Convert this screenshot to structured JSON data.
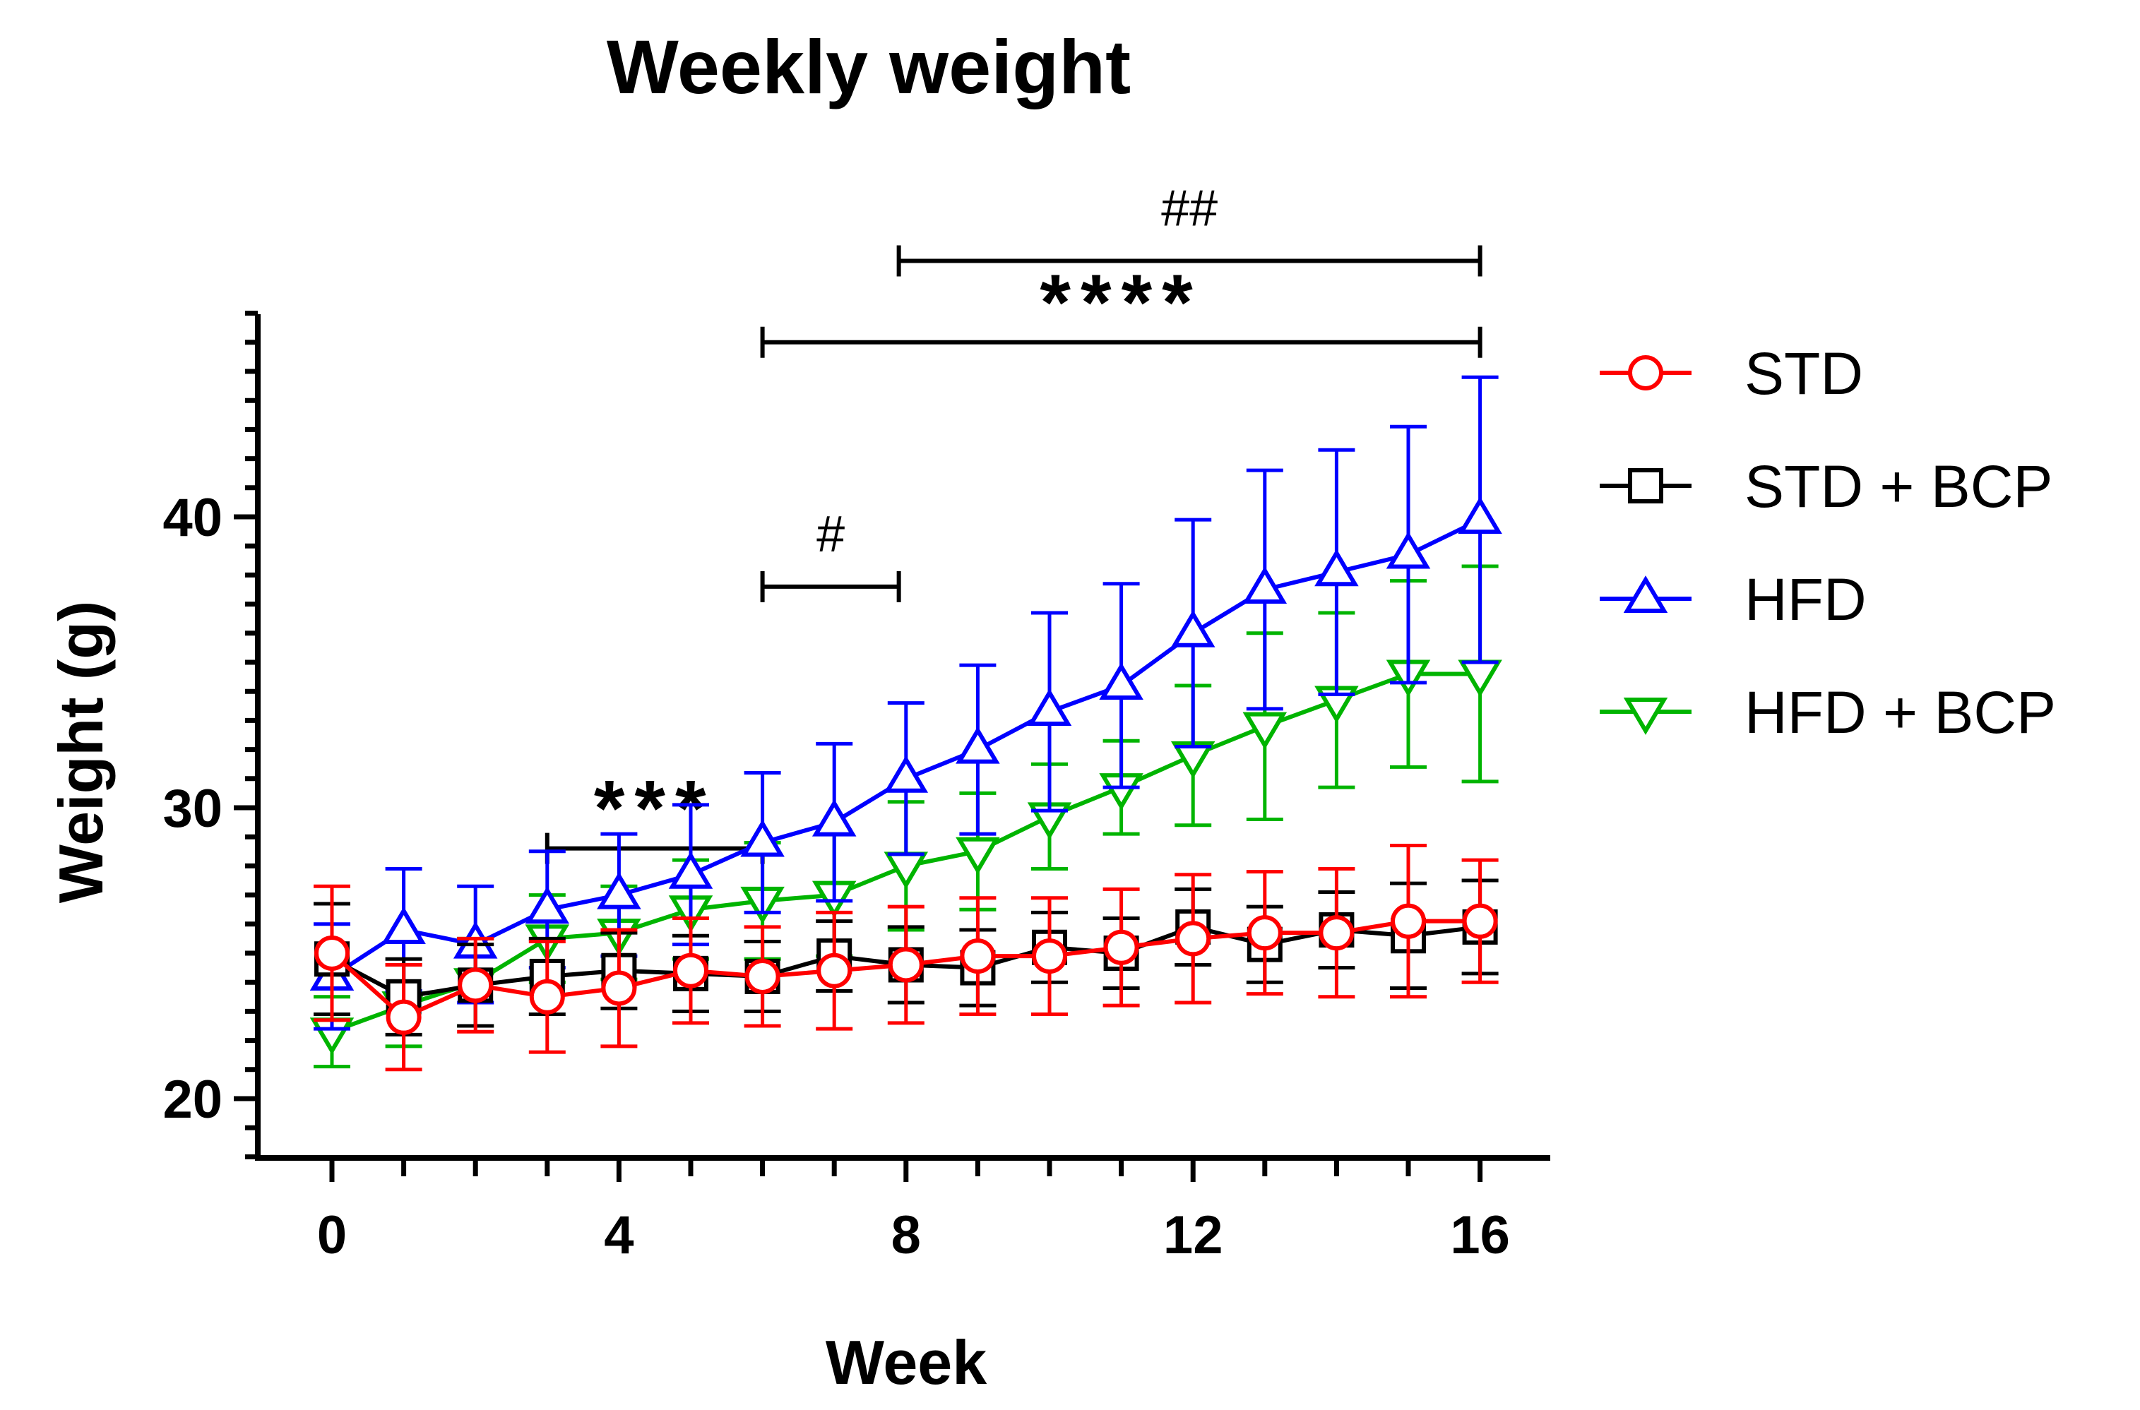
{
  "chart_data": {
    "type": "line",
    "title": "Weekly weight",
    "xlabel": "Week",
    "ylabel": "Weight (g)",
    "xlim": [
      -1,
      17
    ],
    "ylim": [
      18,
      47
    ],
    "xticks": [
      0,
      4,
      8,
      12,
      16
    ],
    "xtick_labels": [
      "0",
      "4",
      "8",
      "12",
      "16"
    ],
    "yticks": [
      20,
      30,
      40
    ],
    "ytick_labels": [
      "20",
      "30",
      "40"
    ],
    "grid": false,
    "legend_position": "right",
    "x": [
      0,
      1,
      2,
      3,
      4,
      5,
      6,
      7,
      8,
      9,
      10,
      11,
      12,
      13,
      14,
      15,
      16
    ],
    "series": [
      {
        "name": "STD",
        "color": "#ff0000",
        "marker": "circle",
        "values": [
          25.0,
          22.8,
          23.9,
          23.5,
          23.8,
          24.4,
          24.2,
          24.4,
          24.6,
          24.9,
          24.9,
          25.2,
          25.5,
          25.7,
          25.7,
          26.1,
          26.1
        ],
        "error": [
          2.3,
          1.8,
          1.6,
          1.9,
          2.0,
          1.8,
          1.7,
          2.0,
          2.0,
          2.0,
          2.0,
          2.0,
          2.2,
          2.1,
          2.2,
          2.6,
          2.1
        ]
      },
      {
        "name": "STD + BCP",
        "color": "#000000",
        "marker": "square",
        "values": [
          24.8,
          23.5,
          23.9,
          24.2,
          24.4,
          24.3,
          24.2,
          24.9,
          24.6,
          24.5,
          25.2,
          25.0,
          25.9,
          25.3,
          25.8,
          25.6,
          25.9
        ],
        "error": [
          1.9,
          1.3,
          1.4,
          1.3,
          1.3,
          1.3,
          1.2,
          1.2,
          1.3,
          1.3,
          1.2,
          1.2,
          1.3,
          1.3,
          1.3,
          1.8,
          1.6
        ]
      },
      {
        "name": "HFD",
        "color": "#0000ff",
        "marker": "triangle-up",
        "values": [
          24.2,
          25.8,
          25.3,
          26.5,
          27.0,
          27.7,
          28.8,
          29.5,
          31.0,
          32.0,
          33.3,
          34.2,
          36.0,
          37.5,
          38.1,
          38.7,
          39.9
        ],
        "error": [
          1.8,
          2.1,
          2.0,
          2.0,
          2.1,
          2.4,
          2.4,
          2.7,
          2.6,
          2.9,
          3.4,
          3.5,
          3.9,
          4.1,
          4.2,
          4.4,
          4.9
        ]
      },
      {
        "name": "HFD + BCP",
        "color": "#00b400",
        "marker": "triangle-down",
        "values": [
          22.3,
          23.2,
          24.0,
          25.5,
          25.7,
          26.5,
          26.8,
          27.0,
          28.0,
          28.5,
          29.7,
          30.7,
          31.8,
          32.8,
          33.7,
          34.6,
          34.6
        ],
        "error": [
          1.2,
          1.4,
          1.5,
          1.5,
          1.6,
          1.7,
          2.0,
          2.1,
          2.2,
          2.0,
          1.8,
          1.6,
          2.4,
          3.2,
          3.0,
          3.2,
          3.7
        ]
      }
    ],
    "annotations": [
      {
        "text": "***",
        "x_from": 3,
        "x_to": 6,
        "y": 28.6
      },
      {
        "text": "#",
        "x_from": 6,
        "x_to": 7.9,
        "y": 37.6
      },
      {
        "text": "****",
        "x_from": 6,
        "x_to": 16,
        "y": 46.0
      },
      {
        "text": "##",
        "x_from": 7.9,
        "x_to": 16,
        "y": 48.8
      }
    ]
  }
}
